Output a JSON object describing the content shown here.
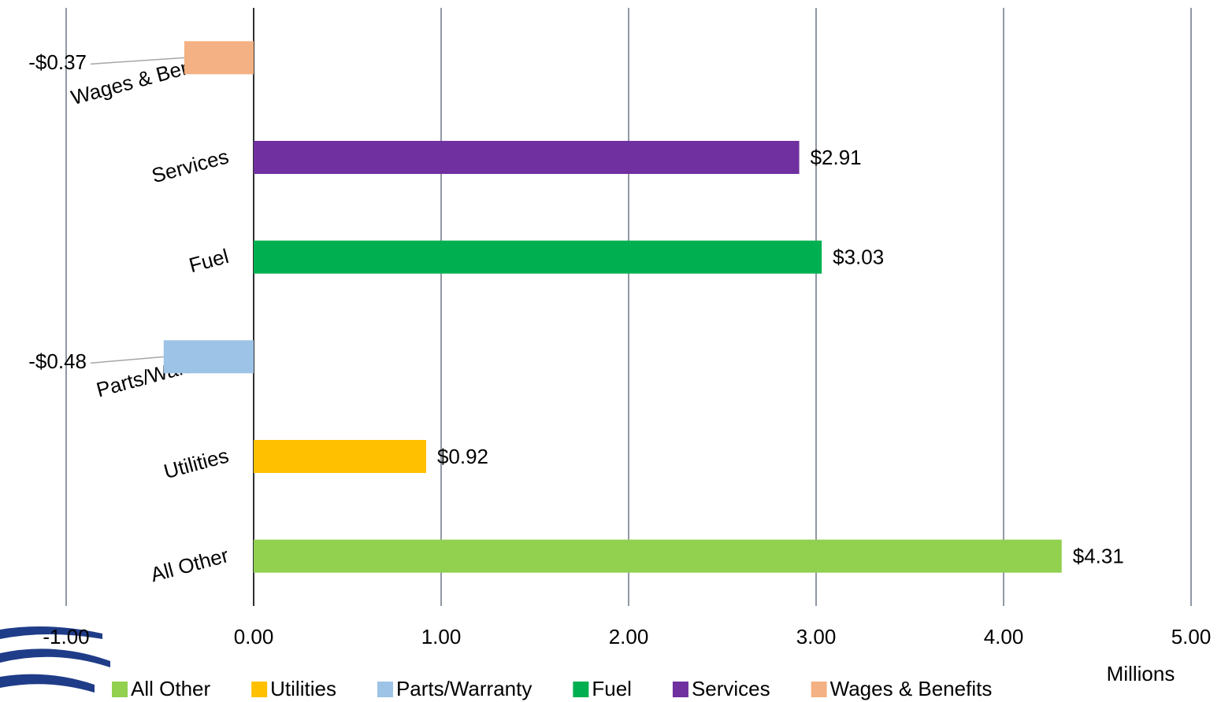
{
  "chart_data": {
    "type": "hbar",
    "x_label": "Millions",
    "categories": [
      "All Other",
      "Utilities",
      "Parts/Warranty",
      "Fuel",
      "Services",
      "Wages & Benefits"
    ],
    "values": [
      4.31,
      0.92,
      -0.48,
      3.03,
      2.91,
      -0.37
    ],
    "value_labels": [
      "$4.31",
      "$0.92",
      "-$0.48",
      "$3.03",
      "$2.91",
      "-$0.37"
    ],
    "colors": [
      "#92d050",
      "#ffc000",
      "#9dc3e6",
      "#00b050",
      "#7030a0",
      "#f4b183"
    ],
    "xlim": [
      -1,
      5
    ],
    "xticks": [
      {
        "value": -1,
        "label": "-1.00"
      },
      {
        "value": 0,
        "label": "0.00"
      },
      {
        "value": 1,
        "label": "1.00"
      },
      {
        "value": 2,
        "label": "2.00"
      },
      {
        "value": 3,
        "label": "3.00"
      },
      {
        "value": 4,
        "label": "4.00"
      },
      {
        "value": 5,
        "label": "5.00"
      }
    ],
    "grid": true
  }
}
